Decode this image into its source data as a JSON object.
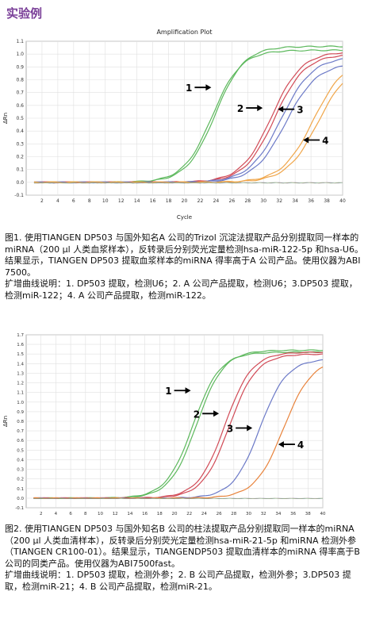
{
  "page": {
    "heading": "实验例"
  },
  "chart_data": [
    {
      "type": "line",
      "title": "Amplification Plot",
      "xlabel": "Cycle",
      "ylabel": "ΔRn",
      "xlim": [
        0,
        40
      ],
      "ylim": [
        -0.1,
        1.1
      ],
      "xticks": [
        2,
        4,
        6,
        8,
        10,
        12,
        14,
        16,
        18,
        20,
        22,
        24,
        26,
        28,
        30,
        32,
        34,
        36,
        38,
        40
      ],
      "yticks": [
        -0.1,
        0.0,
        0.1,
        0.2,
        0.3,
        0.4,
        0.5,
        0.6,
        0.7,
        0.8,
        0.9,
        1.0,
        1.1
      ],
      "grid": true,
      "series": [
        {
          "name": "1",
          "color": "#5cb85c",
          "mid": 23.5,
          "k": 0.55,
          "plateau": 1.03
        },
        {
          "name": "1",
          "color": "#5cb85c",
          "mid": 23.9,
          "k": 0.55,
          "plateau": 1.06
        },
        {
          "name": "2",
          "color": "#d14a56",
          "mid": 31.0,
          "k": 0.52,
          "plateau": 1.02
        },
        {
          "name": "2",
          "color": "#d14a56",
          "mid": 31.4,
          "k": 0.52,
          "plateau": 1.0
        },
        {
          "name": "3",
          "color": "#6b79c7",
          "mid": 32.2,
          "k": 0.5,
          "plateau": 0.98
        },
        {
          "name": "3",
          "color": "#6b79c7",
          "mid": 32.8,
          "k": 0.5,
          "plateau": 0.93
        },
        {
          "name": "4",
          "color": "#f0a64a",
          "mid": 36.3,
          "k": 0.5,
          "plateau": 0.97
        },
        {
          "name": "4",
          "color": "#f0a64a",
          "mid": 36.9,
          "k": 0.5,
          "plateau": 0.94
        }
      ],
      "annotations": [
        {
          "label": "1",
          "arrow": "right",
          "x": 23.4,
          "y": 0.74
        },
        {
          "label": "2",
          "arrow": "right",
          "x": 29.9,
          "y": 0.58
        },
        {
          "label": "3",
          "arrow": "left",
          "x": 31.8,
          "y": 0.57
        },
        {
          "label": "4",
          "arrow": "left",
          "x": 35.0,
          "y": 0.33
        }
      ]
    },
    {
      "type": "line",
      "title": "",
      "xlabel": "",
      "ylabel": "ΔRn",
      "xlim": [
        0,
        40
      ],
      "ylim": [
        -0.1,
        1.7
      ],
      "xticks": [
        2,
        4,
        6,
        8,
        10,
        12,
        14,
        16,
        18,
        20,
        22,
        24,
        26,
        28,
        30,
        32,
        34,
        36,
        38,
        40
      ],
      "yticks": [
        -0.1,
        0.0,
        0.1,
        0.2,
        0.3,
        0.4,
        0.5,
        0.6,
        0.7,
        0.8,
        0.9,
        1.0,
        1.1,
        1.2,
        1.3,
        1.4,
        1.5,
        1.6,
        1.7
      ],
      "grid": true,
      "series": [
        {
          "name": "1",
          "color": "#5cb85c",
          "mid": 22.5,
          "k": 0.55,
          "plateau": 1.52
        },
        {
          "name": "1",
          "color": "#5cb85c",
          "mid": 23.0,
          "k": 0.55,
          "plateau": 1.54
        },
        {
          "name": "2",
          "color": "#d14a56",
          "mid": 26.8,
          "k": 0.55,
          "plateau": 1.52
        },
        {
          "name": "2",
          "color": "#d14a56",
          "mid": 27.4,
          "k": 0.55,
          "plateau": 1.5
        },
        {
          "name": "3",
          "color": "#6b79c7",
          "mid": 31.5,
          "k": 0.55,
          "plateau": 1.45
        },
        {
          "name": "4",
          "color": "#e8823a",
          "mid": 34.7,
          "k": 0.52,
          "plateau": 1.45
        }
      ],
      "annotations": [
        {
          "label": "1",
          "arrow": "right",
          "x": 22.2,
          "y": 1.12
        },
        {
          "label": "2",
          "arrow": "right",
          "x": 26.0,
          "y": 0.88
        },
        {
          "label": "3",
          "arrow": "right",
          "x": 30.5,
          "y": 0.73
        },
        {
          "label": "4",
          "arrow": "left",
          "x": 34.0,
          "y": 0.56
        }
      ]
    }
  ],
  "captions": {
    "fig1": [
      "图1. 使用TIANGEN DP503 与国外知名A 公司的Trizol 沉淀法提取产品分别提取同一样本的miRNA（200 μl 人类血浆样本），反转录后分别荧光定量检测hsa-miR-122-5p 和hsa-U6。结果显示，TIANGEN DP503 提取血浆样本的miRNA 得率高于A 公司产品。使用仪器为ABI 7500。",
      "扩增曲线说明：1. DP503 提取，检测U6；2. A 公司产品提取，检测U6；3.DP503 提取，检测miR-122；4. A 公司产品提取，检测miR-122。"
    ],
    "fig2": [
      "图2. 使用TIANGEN DP503 与国外知名B 公司的柱法提取产品分别提取同一样本的miRNA（200 μl 人类血清样本），反转录后分别荧光定量检测hsa-miR-21-5p 和miRNA 检测外参（TIANGEN CR100-01）。结果显示，TIANGENDP503 提取血清样本的miRNA 得率高于B 公司的同类产品。使用仪器为ABI7500fast。",
      "扩增曲线说明：1. DP503 提取，检测外参；2. B 公司产品提取，检测外参；3.DP503 提取，检测miR-21；4. B 公司产品提取，检测miR-21。"
    ]
  }
}
